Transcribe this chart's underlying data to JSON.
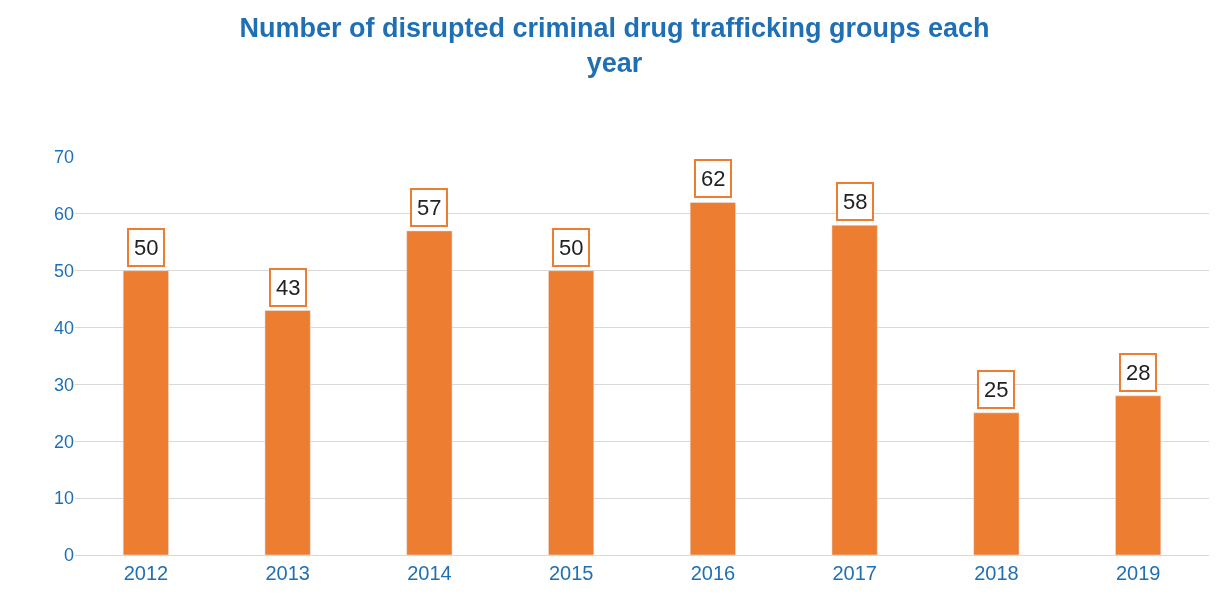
{
  "chart_data": {
    "type": "bar",
    "title": "Number of disrupted criminal drug trafficking groups each year",
    "categories": [
      "2012",
      "2013",
      "2014",
      "2015",
      "2016",
      "2017",
      "2018",
      "2019"
    ],
    "values": [
      50,
      43,
      57,
      50,
      62,
      58,
      25,
      28
    ],
    "color": "#ed7d31",
    "ylim": [
      0,
      70
    ],
    "yticks": [
      0,
      10,
      20,
      30,
      40,
      50,
      60,
      70
    ],
    "grid": "y",
    "data_labels": true
  }
}
